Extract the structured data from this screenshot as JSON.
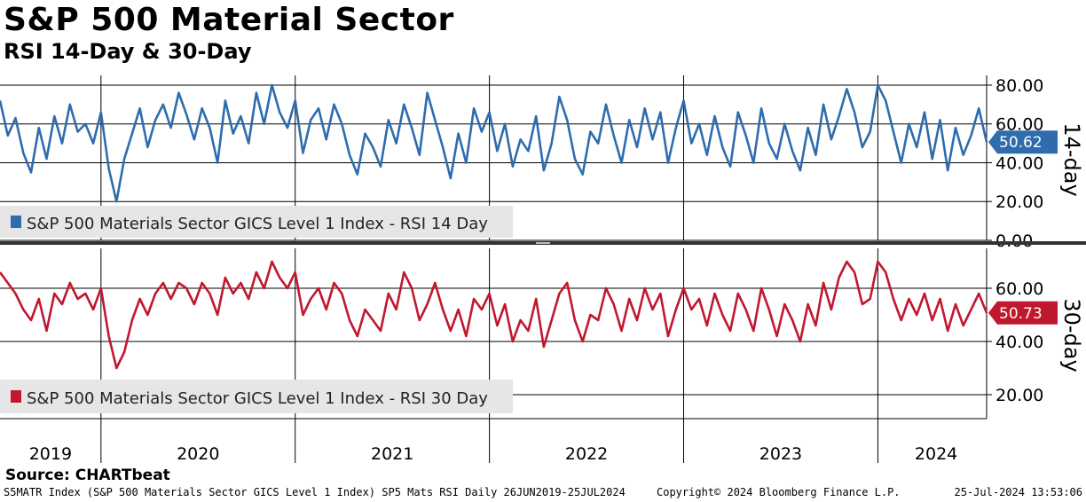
{
  "title": "S&P 500 Material Sector",
  "subtitle": "RSI 14-Day & 30-Day",
  "source": "Source: CHARTbeat",
  "footer": {
    "left": "S5MATR Index (S&P 500 Materials Sector GICS Level 1 Index) SP5 Mats RSI  Daily 26JUN2019-25JUL2024",
    "middle": "Copyright© 2024 Bloomberg Finance L.P.",
    "right": "25-Jul-2024 13:53:06"
  },
  "colors": {
    "rsi14": "#2e6cae",
    "rsi30": "#c0182f",
    "grid": "#000000"
  },
  "chart_data": [
    {
      "type": "line",
      "name": "top-panel",
      "side_label": "14-day",
      "legend": "S&P 500 Materials Sector GICS Level 1 Index - RSI 14 Day",
      "last_value": 50.62,
      "last_value_label": "50.62",
      "ylim": [
        0,
        85
      ],
      "y_ticks": [
        0,
        20,
        40,
        60,
        80
      ],
      "y_tick_labels": [
        "0.00",
        "20.00",
        "40.00",
        "60.00",
        "80.00"
      ],
      "x_range": [
        2019.48,
        2024.56
      ],
      "x_year_starts": [
        2020,
        2021,
        2022,
        2023,
        2024
      ],
      "x_labels": [
        "2019",
        "2020",
        "2021",
        "2022",
        "2023",
        "2024"
      ],
      "x_label_positions": [
        2019.74,
        2020.5,
        2021.5,
        2022.5,
        2023.5,
        2024.3
      ],
      "series": [
        {
          "name": "RSI 14 Day",
          "x": [
            2019.48,
            2019.52,
            2019.56,
            2019.6,
            2019.64,
            2019.68,
            2019.72,
            2019.76,
            2019.8,
            2019.84,
            2019.88,
            2019.92,
            2019.96,
            2020.0,
            2020.04,
            2020.08,
            2020.12,
            2020.16,
            2020.2,
            2020.24,
            2020.28,
            2020.32,
            2020.36,
            2020.4,
            2020.44,
            2020.48,
            2020.52,
            2020.56,
            2020.6,
            2020.64,
            2020.68,
            2020.72,
            2020.76,
            2020.8,
            2020.84,
            2020.88,
            2020.92,
            2020.96,
            2021.0,
            2021.04,
            2021.08,
            2021.12,
            2021.16,
            2021.2,
            2021.24,
            2021.28,
            2021.32,
            2021.36,
            2021.4,
            2021.44,
            2021.48,
            2021.52,
            2021.56,
            2021.6,
            2021.64,
            2021.68,
            2021.72,
            2021.76,
            2021.8,
            2021.84,
            2021.88,
            2021.92,
            2021.96,
            2022.0,
            2022.04,
            2022.08,
            2022.12,
            2022.16,
            2022.2,
            2022.24,
            2022.28,
            2022.32,
            2022.36,
            2022.4,
            2022.44,
            2022.48,
            2022.52,
            2022.56,
            2022.6,
            2022.64,
            2022.68,
            2022.72,
            2022.76,
            2022.8,
            2022.84,
            2022.88,
            2022.92,
            2022.96,
            2023.0,
            2023.04,
            2023.08,
            2023.12,
            2023.16,
            2023.2,
            2023.24,
            2023.28,
            2023.32,
            2023.36,
            2023.4,
            2023.44,
            2023.48,
            2023.52,
            2023.56,
            2023.6,
            2023.64,
            2023.68,
            2023.72,
            2023.76,
            2023.8,
            2023.84,
            2023.88,
            2023.92,
            2023.96,
            2024.0,
            2024.04,
            2024.08,
            2024.12,
            2024.16,
            2024.2,
            2024.24,
            2024.28,
            2024.32,
            2024.36,
            2024.4,
            2024.44,
            2024.48,
            2024.52,
            2024.56
          ],
          "values": [
            72,
            54,
            63,
            45,
            35,
            58,
            42,
            64,
            50,
            70,
            56,
            60,
            50,
            66,
            37,
            20,
            42,
            55,
            68,
            48,
            62,
            70,
            58,
            76,
            65,
            52,
            68,
            58,
            40,
            72,
            55,
            64,
            50,
            76,
            60,
            80,
            66,
            58,
            72,
            45,
            62,
            68,
            52,
            70,
            60,
            44,
            34,
            55,
            48,
            38,
            62,
            50,
            70,
            58,
            44,
            76,
            62,
            48,
            32,
            55,
            40,
            68,
            56,
            66,
            46,
            60,
            38,
            52,
            46,
            64,
            36,
            50,
            74,
            62,
            42,
            34,
            56,
            50,
            70,
            54,
            40,
            62,
            48,
            68,
            52,
            66,
            40,
            58,
            72,
            50,
            60,
            44,
            64,
            48,
            38,
            66,
            54,
            40,
            68,
            50,
            42,
            60,
            46,
            36,
            58,
            44,
            70,
            52,
            64,
            78,
            66,
            48,
            56,
            80,
            72,
            56,
            40,
            60,
            48,
            66,
            42,
            62,
            36,
            58,
            44,
            54,
            68,
            50.62
          ]
        }
      ]
    },
    {
      "type": "line",
      "name": "bottom-panel",
      "side_label": "30-day",
      "legend": "S&P 500 Materials Sector GICS Level 1 Index - RSI 30 Day",
      "last_value": 50.73,
      "last_value_label": "50.73",
      "ylim": [
        11,
        75
      ],
      "y_ticks": [
        20,
        40,
        60
      ],
      "y_tick_labels": [
        "20.00",
        "40.00",
        "60.00"
      ],
      "x_range": [
        2019.48,
        2024.56
      ],
      "x_year_starts": [
        2020,
        2021,
        2022,
        2023,
        2024
      ],
      "series": [
        {
          "name": "RSI 30 Day",
          "x": [
            2019.48,
            2019.52,
            2019.56,
            2019.6,
            2019.64,
            2019.68,
            2019.72,
            2019.76,
            2019.8,
            2019.84,
            2019.88,
            2019.92,
            2019.96,
            2020.0,
            2020.04,
            2020.08,
            2020.12,
            2020.16,
            2020.2,
            2020.24,
            2020.28,
            2020.32,
            2020.36,
            2020.4,
            2020.44,
            2020.48,
            2020.52,
            2020.56,
            2020.6,
            2020.64,
            2020.68,
            2020.72,
            2020.76,
            2020.8,
            2020.84,
            2020.88,
            2020.92,
            2020.96,
            2021.0,
            2021.04,
            2021.08,
            2021.12,
            2021.16,
            2021.2,
            2021.24,
            2021.28,
            2021.32,
            2021.36,
            2021.4,
            2021.44,
            2021.48,
            2021.52,
            2021.56,
            2021.6,
            2021.64,
            2021.68,
            2021.72,
            2021.76,
            2021.8,
            2021.84,
            2021.88,
            2021.92,
            2021.96,
            2022.0,
            2022.04,
            2022.08,
            2022.12,
            2022.16,
            2022.2,
            2022.24,
            2022.28,
            2022.32,
            2022.36,
            2022.4,
            2022.44,
            2022.48,
            2022.52,
            2022.56,
            2022.6,
            2022.64,
            2022.68,
            2022.72,
            2022.76,
            2022.8,
            2022.84,
            2022.88,
            2022.92,
            2022.96,
            2023.0,
            2023.04,
            2023.08,
            2023.12,
            2023.16,
            2023.2,
            2023.24,
            2023.28,
            2023.32,
            2023.36,
            2023.4,
            2023.44,
            2023.48,
            2023.52,
            2023.56,
            2023.6,
            2023.64,
            2023.68,
            2023.72,
            2023.76,
            2023.8,
            2023.84,
            2023.88,
            2023.92,
            2023.96,
            2024.0,
            2024.04,
            2024.08,
            2024.12,
            2024.16,
            2024.2,
            2024.24,
            2024.28,
            2024.32,
            2024.36,
            2024.4,
            2024.44,
            2024.48,
            2024.52,
            2024.56
          ],
          "values": [
            66,
            62,
            58,
            52,
            48,
            56,
            44,
            58,
            54,
            62,
            56,
            58,
            52,
            60,
            42,
            30,
            36,
            48,
            56,
            50,
            58,
            62,
            56,
            62,
            60,
            54,
            62,
            58,
            50,
            64,
            58,
            62,
            56,
            66,
            60,
            70,
            64,
            60,
            66,
            50,
            56,
            60,
            52,
            62,
            58,
            48,
            42,
            52,
            48,
            44,
            58,
            52,
            66,
            60,
            48,
            54,
            62,
            52,
            44,
            52,
            42,
            56,
            52,
            58,
            46,
            54,
            40,
            48,
            44,
            56,
            38,
            48,
            58,
            62,
            48,
            40,
            50,
            48,
            60,
            54,
            44,
            56,
            48,
            60,
            52,
            58,
            42,
            52,
            60,
            52,
            56,
            46,
            58,
            50,
            44,
            58,
            52,
            44,
            60,
            52,
            42,
            54,
            48,
            40,
            54,
            46,
            62,
            52,
            64,
            70,
            66,
            54,
            56,
            70,
            66,
            56,
            48,
            56,
            50,
            58,
            48,
            56,
            44,
            54,
            46,
            52,
            58,
            50.73
          ]
        }
      ]
    }
  ]
}
